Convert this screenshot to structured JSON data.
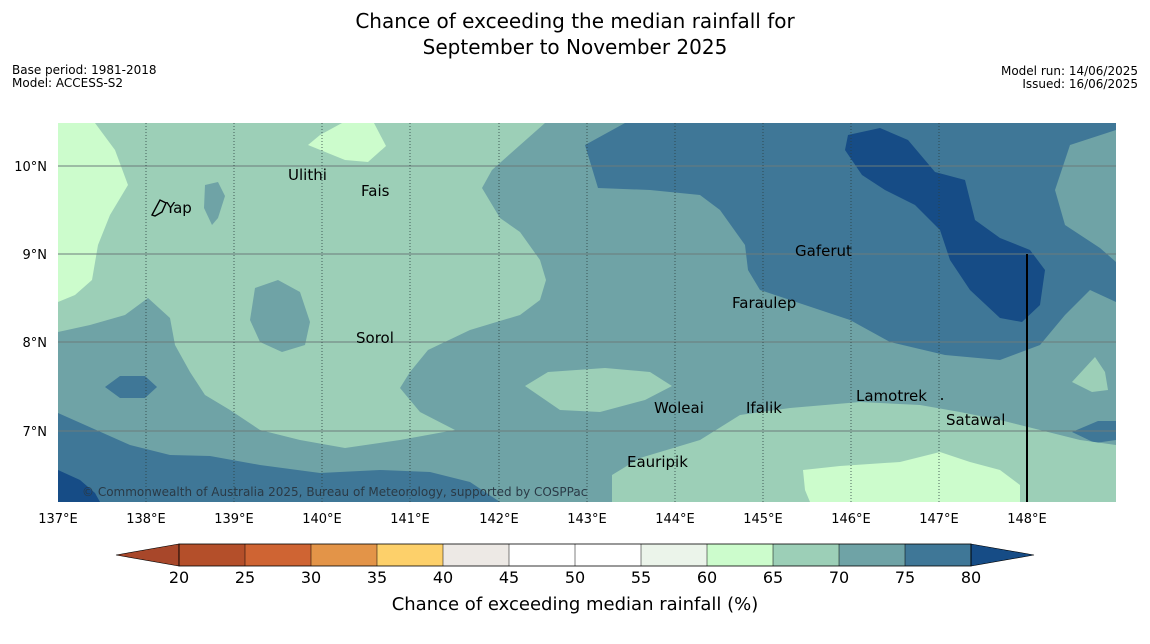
{
  "title": {
    "line1": "Chance of exceeding the median rainfall for",
    "line2": "September to November 2025"
  },
  "meta_left": {
    "base_period": "Base period: 1981-2018",
    "model": "Model: ACCESS-S2"
  },
  "meta_right": {
    "model_run": "Model run: 14/06/2025",
    "issued": "Issued: 16/06/2025"
  },
  "map": {
    "lon_range": [
      137,
      149
    ],
    "lat_range": [
      6.2,
      10.5
    ],
    "lon_ticks": [
      "137°E",
      "138°E",
      "139°E",
      "140°E",
      "141°E",
      "142°E",
      "143°E",
      "144°E",
      "145°E",
      "146°E",
      "147°E",
      "148°E"
    ],
    "lat_ticks": [
      "10°N",
      "9°N",
      "8°N",
      "7°N"
    ],
    "places": [
      {
        "name": "Yap",
        "lon": 138.2,
        "lat": 9.55
      },
      {
        "name": "Ulithi",
        "lon": 139.7,
        "lat": 9.85
      },
      {
        "name": "Fais",
        "lon": 140.5,
        "lat": 9.75
      },
      {
        "name": "Gaferut",
        "lon": 145.4,
        "lat": 9.2
      },
      {
        "name": "Faraulep",
        "lon": 144.7,
        "lat": 8.6
      },
      {
        "name": "Sorol",
        "lon": 140.4,
        "lat": 8.15
      },
      {
        "name": "Lamotrek",
        "lon": 146.1,
        "lat": 7.5
      },
      {
        "name": "Woleai",
        "lon": 143.9,
        "lat": 7.4
      },
      {
        "name": "Ifalik",
        "lon": 144.8,
        "lat": 7.4
      },
      {
        "name": "Satawal",
        "lon": 147.1,
        "lat": 7.35
      },
      {
        "name": "Eauripik",
        "lon": 143.5,
        "lat": 6.7
      }
    ],
    "copyright": "© Commonwealth of Australia 2025, Bureau of Meteorology, supported by COSPPac"
  },
  "colors": {
    "c20": "#a8472a",
    "c25": "#b44f2a",
    "c30": "#cf6433",
    "c35": "#e39448",
    "c40": "#fdd06a",
    "c45": "#ede9e5",
    "c50": "#ffffff",
    "c55": "#ffffff",
    "c60": "#ebf4ea",
    "c65": "#ccfccc",
    "c70": "#9ccfb7",
    "c75": "#6fa3a6",
    "c80": "#3f7797",
    "c85": "#164c86"
  },
  "colorbar": {
    "ticks": [
      "20",
      "25",
      "30",
      "35",
      "40",
      "45",
      "50",
      "55",
      "60",
      "65",
      "70",
      "75",
      "80"
    ],
    "label": "Chance of exceeding median rainfall (%)"
  }
}
